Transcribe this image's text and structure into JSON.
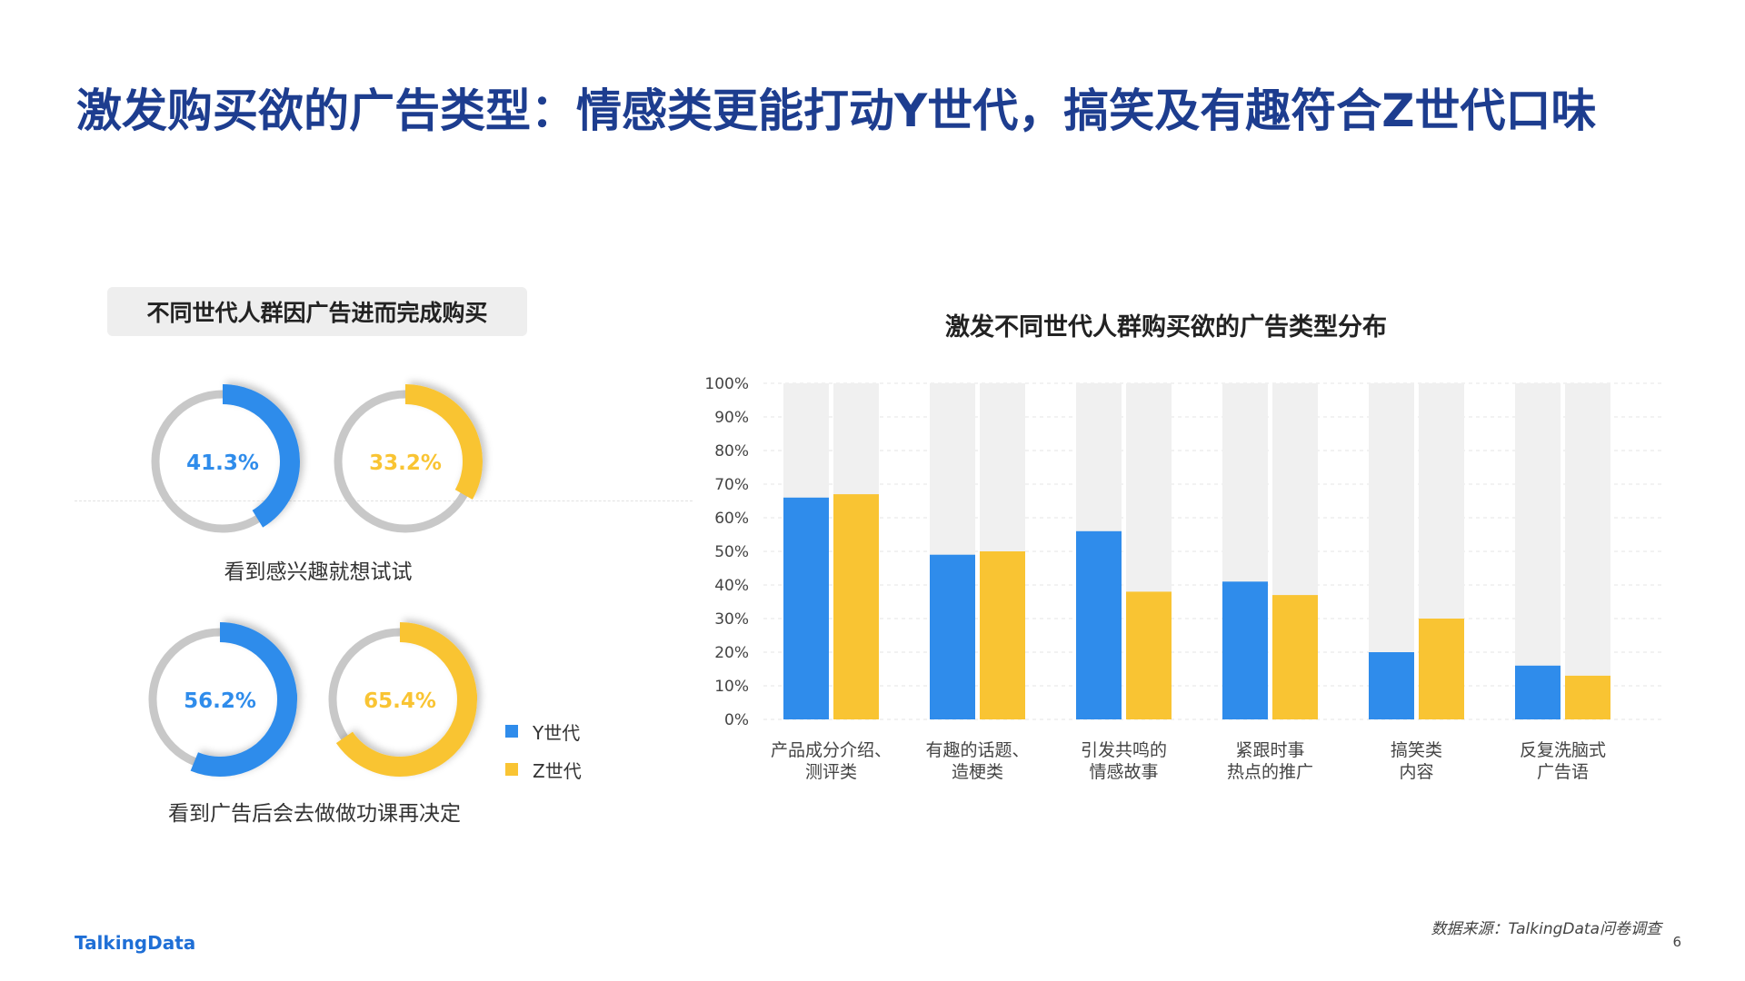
{
  "header": {
    "title": "激发购买欲的广告类型：情感类更能打动Y世代，搞笑及有趣符合Z世代口味"
  },
  "left_panel": {
    "subtitle": "不同世代人群因广告进而完成购买",
    "groups": [
      {
        "caption": "看到感兴趣就想试试",
        "donuts": [
          {
            "series": "Y世代",
            "label": "41.3%",
            "value": 41.3
          },
          {
            "series": "Z世代",
            "label": "33.2%",
            "value": 33.2
          }
        ]
      },
      {
        "caption": "看到广告后会去做做功课再决定",
        "donuts": [
          {
            "series": "Y世代",
            "label": "56.2%",
            "value": 56.2
          },
          {
            "series": "Z世代",
            "label": "65.4%",
            "value": 65.4
          }
        ]
      }
    ],
    "legend": [
      {
        "name": "Y世代",
        "color": "#2f8ceb"
      },
      {
        "name": "Z世代",
        "color": "#f9c433"
      }
    ]
  },
  "chart_data": {
    "type": "bar",
    "title": "激发不同世代人群购买欲的广告类型分布",
    "categories": [
      [
        "产品成分介绍、",
        "测评类"
      ],
      [
        "有趣的话题、",
        "造梗类"
      ],
      [
        "引发共鸣的",
        "情感故事"
      ],
      [
        "紧跟时事",
        "热点的推广"
      ],
      [
        "搞笑类",
        "内容"
      ],
      [
        "反复洗脑式",
        "广告语"
      ]
    ],
    "series": [
      {
        "name": "Y世代",
        "color": "#2f8ceb",
        "values": [
          66,
          49,
          56,
          41,
          20,
          16
        ]
      },
      {
        "name": "Z世代",
        "color": "#f9c433",
        "values": [
          67,
          50,
          38,
          37,
          30,
          13
        ]
      }
    ],
    "ylim": [
      0,
      100
    ],
    "yticks": [
      "0%",
      "10%",
      "20%",
      "30%",
      "40%",
      "50%",
      "60%",
      "70%",
      "80%",
      "90%",
      "100%"
    ],
    "background_bar_color": "#f0f0f0",
    "grid": true
  },
  "footer": {
    "brand": "TalkingData",
    "source": "数据来源：TalkingData问卷调查",
    "page": "6"
  },
  "colors": {
    "title": "#1d3d8f",
    "donut_track": "#c8c8c8"
  }
}
